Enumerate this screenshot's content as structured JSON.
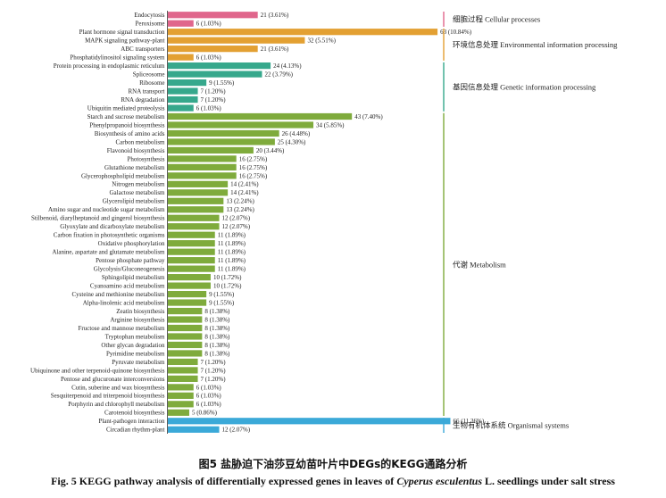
{
  "chart_data": {
    "type": "bar",
    "orientation": "horizontal",
    "groups": [
      {
        "label": "细胞过程  Cellular processes",
        "color": "#e0668c",
        "items": [
          {
            "name": "Endocytosis",
            "value": 21,
            "pct": "(3.61%)"
          },
          {
            "name": "Peroxisome",
            "value": 6,
            "pct": "(1.03%)"
          }
        ]
      },
      {
        "label": "环境信息处理  Environmental information processing",
        "color": "#e3a032",
        "items": [
          {
            "name": "Plant hormone signal transduction",
            "value": 63,
            "pct": "(10.84%)"
          },
          {
            "name": "MAPK signaling pathway-plant",
            "value": 32,
            "pct": "(5.51%)"
          },
          {
            "name": "ABC transporters",
            "value": 21,
            "pct": "(3.61%)"
          },
          {
            "name": "Phosphatidylinositol signaling system",
            "value": 6,
            "pct": "(1.03%)"
          }
        ]
      },
      {
        "label": "基因信息处理  Genetic information processing",
        "color": "#36a88c",
        "items": [
          {
            "name": "Protein processing in endoplasmic reticulum",
            "value": 24,
            "pct": "(4.13%)"
          },
          {
            "name": "Spliceosome",
            "value": 22,
            "pct": "(3.79%)"
          },
          {
            "name": "Ribosome",
            "value": 9,
            "pct": "(1.55%)"
          },
          {
            "name": "RNA transport",
            "value": 7,
            "pct": "(1.20%)"
          },
          {
            "name": "RNA degradation",
            "value": 7,
            "pct": "(1.20%)"
          },
          {
            "name": "Ubiquitin mediated proteolysis",
            "value": 6,
            "pct": "(1.03%)"
          }
        ]
      },
      {
        "label": "代谢  Metabolism",
        "color": "#7fab3c",
        "items": [
          {
            "name": "Starch and sucrose metabolism",
            "value": 43,
            "pct": "(7.40%)"
          },
          {
            "name": "Phenylpropanoid biosynthesis",
            "value": 34,
            "pct": "(5.85%)"
          },
          {
            "name": "Biosynthesis of amino acids",
            "value": 26,
            "pct": "(4.48%)"
          },
          {
            "name": "Carbon metabolism",
            "value": 25,
            "pct": "(4.30%)"
          },
          {
            "name": "Flavonoid biosynthesis",
            "value": 20,
            "pct": "(3.44%)"
          },
          {
            "name": "Photosynthesis",
            "value": 16,
            "pct": "(2.75%)"
          },
          {
            "name": "Glutathione metabolism",
            "value": 16,
            "pct": "(2.75%)"
          },
          {
            "name": "Glycerophospholipid metabolism",
            "value": 16,
            "pct": "(2.75%)"
          },
          {
            "name": "Nitrogen metabolism",
            "value": 14,
            "pct": "(2.41%)"
          },
          {
            "name": "Galactose metabolism",
            "value": 14,
            "pct": "(2.41%)"
          },
          {
            "name": "Glycerolipid metabolism",
            "value": 13,
            "pct": "(2.24%)"
          },
          {
            "name": "Amino sugar and nucleotide sugar metabolism",
            "value": 13,
            "pct": "(2.24%)"
          },
          {
            "name": "Stilbenoid, diarylheptanoid and gingerol biosynthesis",
            "value": 12,
            "pct": "(2.07%)"
          },
          {
            "name": "Glyoxylate and dicarboxylate metabolism",
            "value": 12,
            "pct": "(2.07%)"
          },
          {
            "name": "Carbon fixation in photosynthetic organisms",
            "value": 11,
            "pct": "(1.89%)"
          },
          {
            "name": "Oxidative phosphorylation",
            "value": 11,
            "pct": "(1.89%)"
          },
          {
            "name": "Alanine, aspartate and glutamate metabolism",
            "value": 11,
            "pct": "(1.89%)"
          },
          {
            "name": "Pentose phosphate pathway",
            "value": 11,
            "pct": "(1.89%)"
          },
          {
            "name": "Glycolysis/Gluconeogenesis",
            "value": 11,
            "pct": "(1.89%)"
          },
          {
            "name": "Sphingolipid metabolism",
            "value": 10,
            "pct": "(1.72%)"
          },
          {
            "name": "Cyanoamino acid metabolism",
            "value": 10,
            "pct": "(1.72%)"
          },
          {
            "name": "Cysteine and methionine metabolism",
            "value": 9,
            "pct": "(1.55%)"
          },
          {
            "name": "Alpha-linolenic acid metabolism",
            "value": 9,
            "pct": "(1.55%)"
          },
          {
            "name": "Zeatin biosynthesis",
            "value": 8,
            "pct": "(1.38%)"
          },
          {
            "name": "Arginine biosynthesis",
            "value": 8,
            "pct": "(1.38%)"
          },
          {
            "name": "Fructose and mannose metabolism",
            "value": 8,
            "pct": "(1.38%)"
          },
          {
            "name": "Tryptophan metabolism",
            "value": 8,
            "pct": "(1.38%)"
          },
          {
            "name": "Other glycan degradation",
            "value": 8,
            "pct": "(1.38%)"
          },
          {
            "name": "Pyrimidine metabolism",
            "value": 8,
            "pct": "(1.38%)"
          },
          {
            "name": "Pyruvate metabolism",
            "value": 7,
            "pct": "(1.20%)"
          },
          {
            "name": "Ubiquinone and other terpenoid-quinone biosynthesis",
            "value": 7,
            "pct": "(1.20%)"
          },
          {
            "name": "Pentose and glucuronate interconversions",
            "value": 7,
            "pct": "(1.20%)"
          },
          {
            "name": "Cutin, suberine and wax biosynthesis",
            "value": 6,
            "pct": "(1.03%)"
          },
          {
            "name": "Sesquiterpenoid and triterpenoid biosynthesis",
            "value": 6,
            "pct": "(1.03%)"
          },
          {
            "name": "Porphyrin and chlorophyll metabolism",
            "value": 6,
            "pct": "(1.03%)"
          },
          {
            "name": "Carotenoid biosynthesis",
            "value": 5,
            "pct": "(0.86%)"
          }
        ]
      },
      {
        "label": "生物有机体系统  Organismal systems",
        "color": "#3ba9d8",
        "items": [
          {
            "name": "Plant-pathogen interaction",
            "value": 66,
            "pct": "(11.36%)"
          },
          {
            "name": "Circadian rhythm-plant",
            "value": 12,
            "pct": "(2.07%)"
          }
        ]
      }
    ],
    "grid": false
  },
  "caption": {
    "cn": "图5   盐胁迫下油莎豆幼苗叶片中DEGs的KEGG通路分析",
    "en_prefix": "Fig. 5   KEGG pathway analysis of differentially expressed genes in leaves of ",
    "en_species": "Cyperus esculentus",
    "en_suffix": " L. seedlings under salt stress"
  }
}
